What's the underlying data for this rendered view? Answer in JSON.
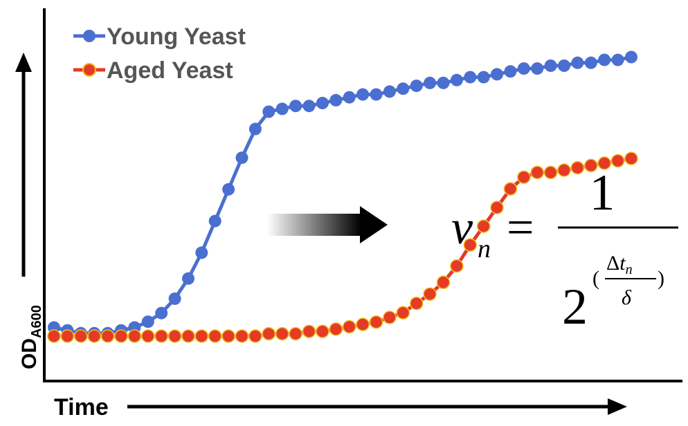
{
  "chart_data": {
    "type": "line",
    "title": "",
    "xlabel": "Time",
    "ylabel": "OD",
    "ylabel_sub": "A600",
    "legend_position": "top-left",
    "grid": false,
    "x": [
      0,
      1,
      2,
      3,
      4,
      5,
      6,
      7,
      8,
      9,
      10,
      11,
      12,
      13,
      14,
      15,
      16,
      17,
      18,
      19,
      20,
      21,
      22,
      23,
      24,
      25,
      26,
      27,
      28,
      29,
      30,
      31,
      32,
      33,
      34,
      35,
      36,
      37,
      38,
      39,
      40,
      41,
      42,
      43
    ],
    "ylim": [
      0,
      1
    ],
    "series": [
      {
        "name": "Young Yeast",
        "color": "#4a6fd0",
        "values": [
          0.03,
          0.02,
          0.01,
          0.01,
          0.01,
          0.02,
          0.03,
          0.05,
          0.08,
          0.13,
          0.2,
          0.29,
          0.4,
          0.51,
          0.62,
          0.72,
          0.78,
          0.79,
          0.8,
          0.8,
          0.81,
          0.82,
          0.83,
          0.84,
          0.84,
          0.85,
          0.86,
          0.87,
          0.88,
          0.88,
          0.89,
          0.9,
          0.9,
          0.91,
          0.92,
          0.93,
          0.93,
          0.94,
          0.94,
          0.95,
          0.95,
          0.96,
          0.96,
          0.97
        ]
      },
      {
        "name": "Aged Yeast",
        "color": "#e43a26",
        "marker_edge": "#f0c020",
        "values": [
          0.0,
          0.0,
          0.0,
          0.0,
          0.0,
          0.0,
          0.0,
          0.0,
          0.0,
          0.0,
          0.0,
          0.0,
          0.0,
          0.0,
          0.0,
          0.0,
          0.01,
          0.01,
          0.01,
          0.02,
          0.02,
          0.03,
          0.04,
          0.05,
          0.06,
          0.08,
          0.1,
          0.14,
          0.18,
          0.23,
          0.3,
          0.39,
          0.47,
          0.55,
          0.63,
          0.68,
          0.7,
          0.7,
          0.71,
          0.72,
          0.73,
          0.74,
          0.75,
          0.76
        ]
      }
    ]
  },
  "formula": {
    "lhs_var": "v",
    "lhs_sub": "n",
    "equals": "=",
    "numerator": "1",
    "base": "2",
    "exp_open": "(",
    "exp_num_delta": "Δ",
    "exp_num_var": "t",
    "exp_num_sub": "n",
    "exp_den": "δ",
    "exp_close": ")"
  }
}
